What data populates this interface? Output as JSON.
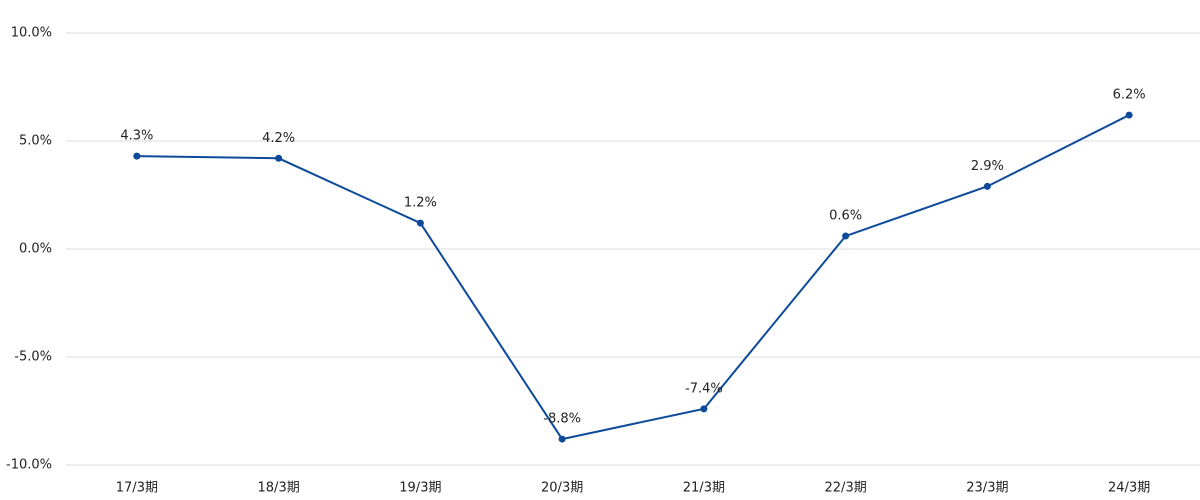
{
  "chart_data": {
    "type": "line",
    "categories": [
      "17/3期",
      "18/3期",
      "19/3期",
      "20/3期",
      "21/3期",
      "22/3期",
      "23/3期",
      "24/3期"
    ],
    "series": [
      {
        "color": "#0d4a9a",
        "values": [
          4.3,
          4.2,
          1.2,
          -8.8,
          -7.4,
          0.6,
          2.9,
          6.2
        ],
        "value_labels": [
          "4.3%",
          "4.2%",
          "1.2%",
          "-8.8%",
          "-7.4%",
          "0.6%",
          "2.9%",
          "6.2%"
        ]
      }
    ],
    "ylim": [
      -10,
      10
    ],
    "yticks": [
      {
        "value": -10,
        "label": "-10.0%"
      },
      {
        "value": -5,
        "label": "-5.0%"
      },
      {
        "value": 0,
        "label": "0.0%"
      },
      {
        "value": 5,
        "label": "5.0%"
      },
      {
        "value": 10,
        "label": "10.0%"
      }
    ],
    "grid": true
  }
}
